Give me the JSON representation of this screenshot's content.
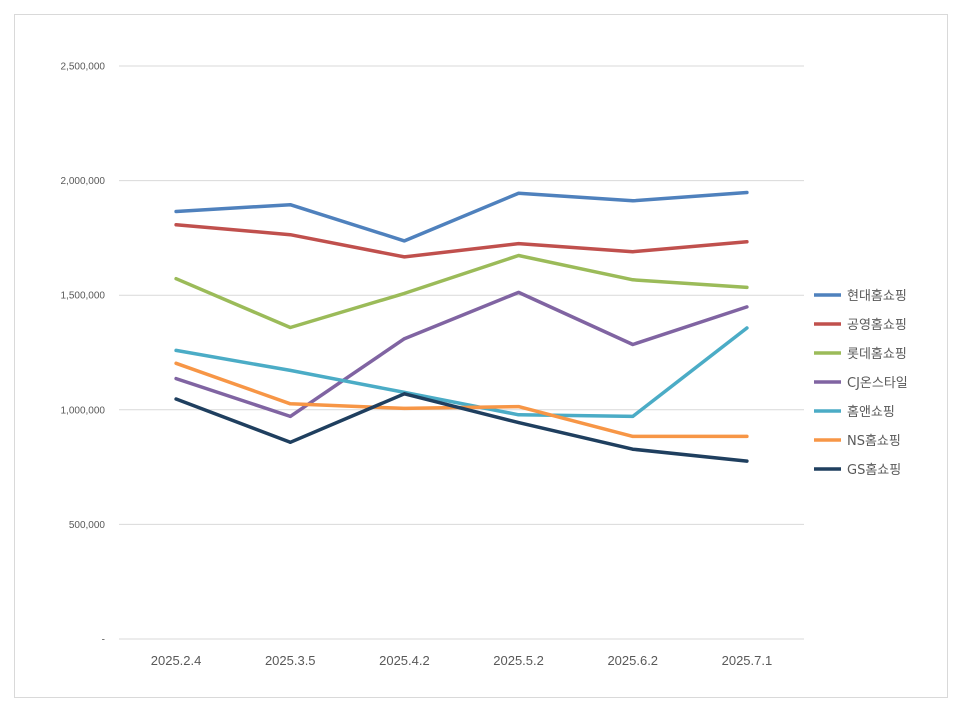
{
  "chart_data": {
    "type": "line",
    "title": "",
    "xlabel": "",
    "ylabel": "",
    "categories": [
      "2025.2.4",
      "2025.3.5",
      "2025.4.2",
      "2025.5.2",
      "2025.6.2",
      "2025.7.1"
    ],
    "y_ticks": [
      {
        "value": 0,
        "label": "-"
      },
      {
        "value": 500000,
        "label": "500,000"
      },
      {
        "value": 1000000,
        "label": "1,000,000"
      },
      {
        "value": 1500000,
        "label": "1,500,000"
      },
      {
        "value": 2000000,
        "label": "2,000,000"
      },
      {
        "value": 2500000,
        "label": "2,500,000"
      }
    ],
    "ylim": [
      0,
      2500000
    ],
    "grid": true,
    "legend_position": "right",
    "series": [
      {
        "name": "현대홈쇼핑",
        "color": "#4f81bd",
        "values": [
          1865000,
          1895000,
          1737000,
          1945000,
          1912000,
          1948000
        ]
      },
      {
        "name": "공영홈쇼핑",
        "color": "#c0504d",
        "values": [
          1807000,
          1764000,
          1667000,
          1725000,
          1690000,
          1733000
        ]
      },
      {
        "name": "롯데홈쇼핑",
        "color": "#9bbb59",
        "values": [
          1572000,
          1359000,
          1508000,
          1673000,
          1567000,
          1534000
        ]
      },
      {
        "name": "CJ온스타일",
        "color": "#8064a2",
        "values": [
          1136000,
          971000,
          1310000,
          1512000,
          1285000,
          1449000
        ]
      },
      {
        "name": "홈앤쇼핑",
        "color": "#4bacc6",
        "values": [
          1259000,
          1172000,
          1076000,
          978000,
          971000,
          1357000
        ]
      },
      {
        "name": "NS홈쇼핑",
        "color": "#f79646",
        "values": [
          1203000,
          1026000,
          1006000,
          1014000,
          884000,
          884000
        ]
      },
      {
        "name": "GS홈쇼핑",
        "color": "#1f3f5f",
        "values": [
          1047000,
          858000,
          1070000,
          944000,
          828000,
          776000
        ]
      }
    ]
  }
}
